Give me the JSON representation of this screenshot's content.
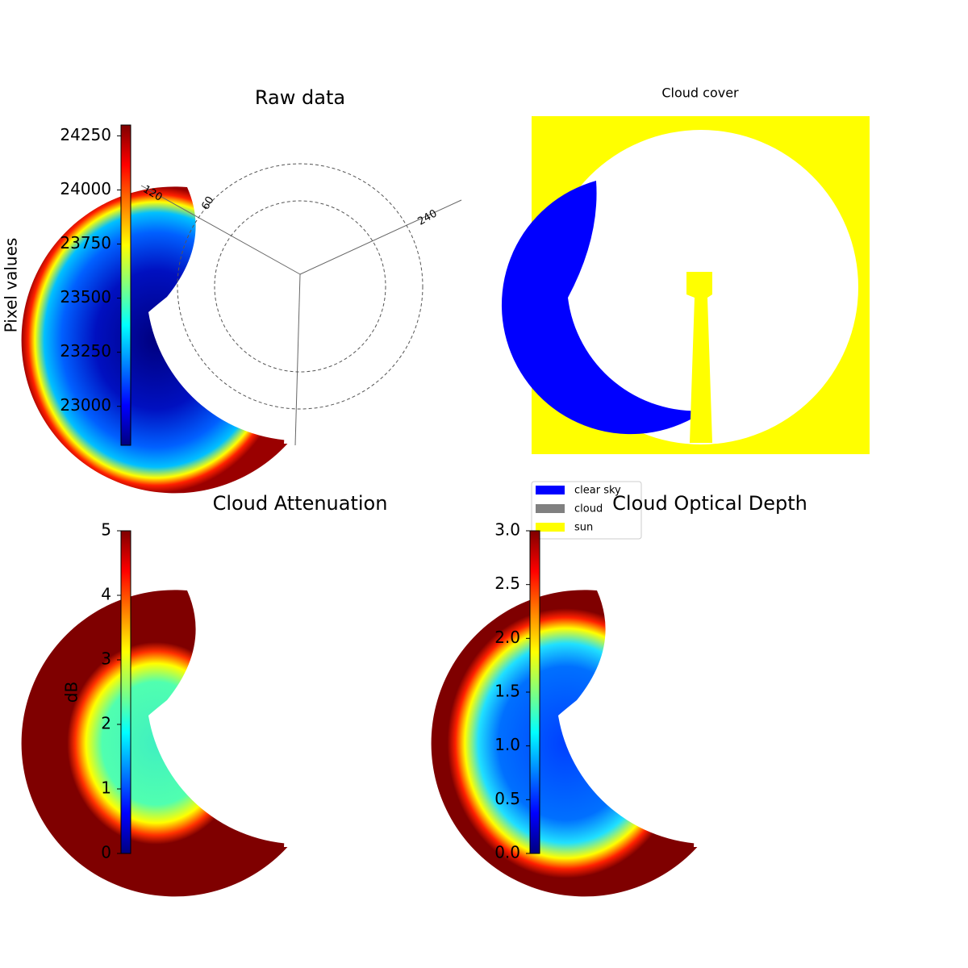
{
  "chart_data": [
    {
      "type": "image",
      "title": "Raw data",
      "overlay_labels": [
        "120",
        "60",
        "240"
      ],
      "colorbar": {
        "label": "Pixel values",
        "lim": [
          22820,
          24300
        ],
        "ticks": [
          23000,
          23250,
          23500,
          23750,
          24000,
          24250
        ]
      }
    },
    {
      "type": "class-map",
      "title": "Cloud cover",
      "series": [
        {
          "name": "clear sky",
          "color": "#0000ff"
        },
        {
          "name": "cloud",
          "color": "#808080"
        },
        {
          "name": "sun",
          "color": "#ffff00"
        }
      ]
    },
    {
      "type": "image",
      "title": "Cloud Attenuation",
      "colorbar": {
        "label": "dB",
        "lim": [
          0,
          5
        ],
        "ticks": [
          0,
          1,
          2,
          3,
          4,
          5
        ]
      }
    },
    {
      "type": "image",
      "title": "Cloud Optical Depth",
      "colorbar": {
        "lim": [
          0,
          3
        ],
        "ticks": [
          {
            "value": 0,
            "label": "0.0"
          },
          {
            "value": 0.5,
            "label": "0.5"
          },
          {
            "value": 1,
            "label": "1.0"
          },
          {
            "value": 1.5,
            "label": "1.5"
          },
          {
            "value": 2,
            "label": "2.0"
          },
          {
            "value": 2.5,
            "label": "2.5"
          },
          {
            "value": 3,
            "label": "3.0"
          }
        ]
      }
    }
  ]
}
